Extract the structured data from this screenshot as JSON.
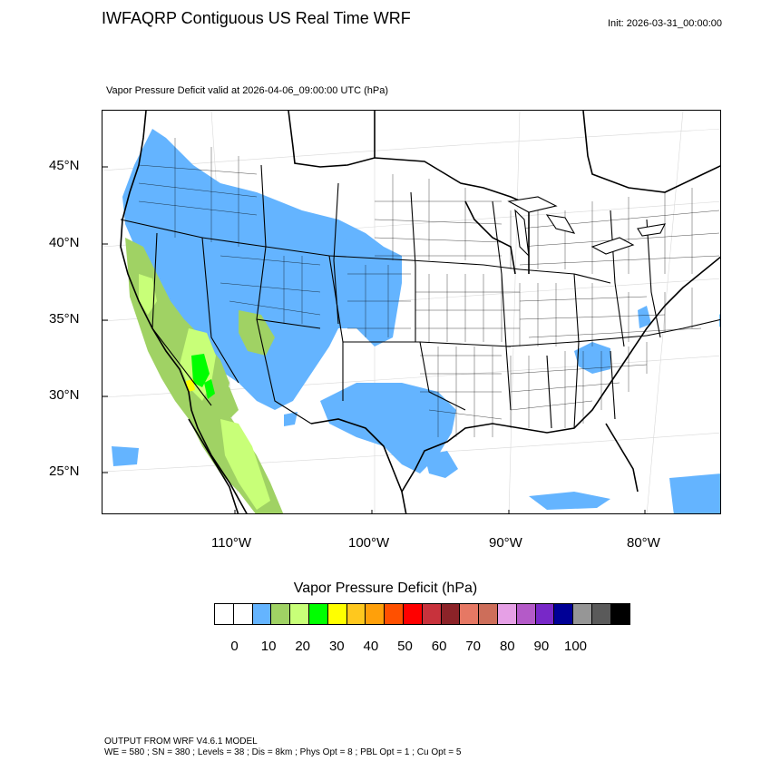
{
  "header": {
    "title": "IWFAQRP Contiguous US Real Time WRF",
    "init": "Init: 2026-03-31_00:00:00"
  },
  "map": {
    "subtitle": "Vapor Pressure Deficit valid at 2026-04-06_09:00:00 UTC   (hPa)",
    "lat_labels": [
      "45°N",
      "40°N",
      "35°N",
      "30°N",
      "25°N"
    ],
    "lon_labels": [
      "110°W",
      "100°W",
      "90°W",
      "80°W"
    ]
  },
  "colorbar": {
    "title": "Vapor Pressure Deficit  (hPa)",
    "colors": [
      "#ffffff",
      "#ffffff",
      "#64b4ff",
      "#a0d264",
      "#c8ff78",
      "#00ff00",
      "#ffff00",
      "#ffc81e",
      "#ffa00a",
      "#ff5000",
      "#ff0000",
      "#c8323c",
      "#8c2328",
      "#e67864",
      "#cd6e5a",
      "#e6a0e6",
      "#b45ac8",
      "#7828c8",
      "#000096",
      "#969696",
      "#5a5a5a",
      "#000000"
    ],
    "labels": [
      "0",
      "10",
      "20",
      "30",
      "40",
      "50",
      "60",
      "70",
      "80",
      "90",
      "100"
    ]
  },
  "footer": {
    "line1": "OUTPUT FROM WRF V4.6.1 MODEL",
    "line2": "WE = 580 ; SN = 380 ; Levels = 38 ; Dis = 8km ; Phys Opt = 8 ; PBL Opt = 1 ; Cu Opt = 5"
  }
}
